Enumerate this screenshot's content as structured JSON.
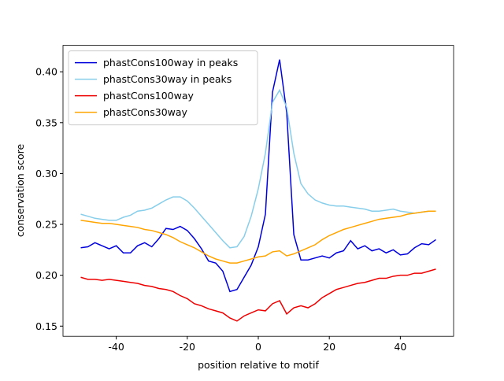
{
  "chart_data": {
    "type": "line",
    "xlabel": "position relative to motif",
    "ylabel": "conservation score",
    "x": [
      -50,
      -48,
      -46,
      -44,
      -42,
      -40,
      -38,
      -36,
      -34,
      -32,
      -30,
      -28,
      -26,
      -24,
      -22,
      -20,
      -18,
      -16,
      -14,
      -12,
      -10,
      -8,
      -6,
      -4,
      -2,
      0,
      2,
      4,
      6,
      8,
      10,
      12,
      14,
      16,
      18,
      20,
      22,
      24,
      26,
      28,
      30,
      32,
      34,
      36,
      38,
      40,
      42,
      44,
      46,
      48,
      50
    ],
    "series": [
      {
        "name": "phastCons100way in peaks",
        "color": "#0000dd",
        "values": [
          0.227,
          0.228,
          0.232,
          0.229,
          0.226,
          0.229,
          0.222,
          0.222,
          0.229,
          0.232,
          0.228,
          0.236,
          0.246,
          0.245,
          0.248,
          0.244,
          0.236,
          0.226,
          0.214,
          0.212,
          0.204,
          0.184,
          0.186,
          0.198,
          0.21,
          0.228,
          0.26,
          0.38,
          0.412,
          0.36,
          0.24,
          0.215,
          0.215,
          0.217,
          0.219,
          0.217,
          0.222,
          0.224,
          0.234,
          0.226,
          0.229,
          0.224,
          0.226,
          0.222,
          0.225,
          0.22,
          0.221,
          0.227,
          0.231,
          0.23,
          0.235
        ]
      },
      {
        "name": "phastCons30way in peaks",
        "color": "#87ceeb",
        "values": [
          0.26,
          0.258,
          0.256,
          0.255,
          0.254,
          0.254,
          0.257,
          0.259,
          0.263,
          0.264,
          0.266,
          0.27,
          0.274,
          0.277,
          0.277,
          0.273,
          0.266,
          0.258,
          0.25,
          0.242,
          0.234,
          0.227,
          0.228,
          0.238,
          0.258,
          0.285,
          0.32,
          0.37,
          0.382,
          0.365,
          0.32,
          0.29,
          0.28,
          0.274,
          0.271,
          0.269,
          0.268,
          0.268,
          0.267,
          0.266,
          0.265,
          0.263,
          0.263,
          0.264,
          0.265,
          0.263,
          0.262,
          0.261,
          0.262,
          0.263,
          0.263
        ]
      },
      {
        "name": "phastCons100way",
        "color": "#ee0000",
        "values": [
          0.198,
          0.196,
          0.196,
          0.195,
          0.196,
          0.195,
          0.194,
          0.193,
          0.192,
          0.19,
          0.189,
          0.187,
          0.186,
          0.184,
          0.18,
          0.177,
          0.172,
          0.17,
          0.167,
          0.165,
          0.163,
          0.158,
          0.155,
          0.16,
          0.163,
          0.166,
          0.165,
          0.172,
          0.175,
          0.162,
          0.168,
          0.17,
          0.168,
          0.172,
          0.178,
          0.182,
          0.186,
          0.188,
          0.19,
          0.192,
          0.193,
          0.195,
          0.197,
          0.197,
          0.199,
          0.2,
          0.2,
          0.202,
          0.202,
          0.204,
          0.206
        ]
      },
      {
        "name": "phastCons30way",
        "color": "#ffa500",
        "values": [
          0.254,
          0.253,
          0.252,
          0.251,
          0.251,
          0.25,
          0.249,
          0.248,
          0.247,
          0.245,
          0.244,
          0.242,
          0.24,
          0.237,
          0.233,
          0.23,
          0.227,
          0.223,
          0.219,
          0.216,
          0.214,
          0.212,
          0.212,
          0.214,
          0.216,
          0.218,
          0.219,
          0.223,
          0.224,
          0.219,
          0.221,
          0.224,
          0.227,
          0.23,
          0.235,
          0.239,
          0.242,
          0.245,
          0.247,
          0.249,
          0.251,
          0.253,
          0.255,
          0.256,
          0.257,
          0.258,
          0.26,
          0.261,
          0.262,
          0.263,
          0.263
        ]
      }
    ],
    "xlim": [
      -55,
      55
    ],
    "xticks": [
      -40,
      -20,
      0,
      20,
      40
    ],
    "ylim": [
      0.14,
      0.426
    ],
    "yticks": [
      0.15,
      {
        "value": 0.2,
        "label": "0.20"
      },
      0.25,
      {
        "value": 0.3,
        "label": "0.30"
      },
      0.35,
      {
        "value": 0.4,
        "label": "0.40"
      }
    ],
    "legend": "upper left"
  }
}
